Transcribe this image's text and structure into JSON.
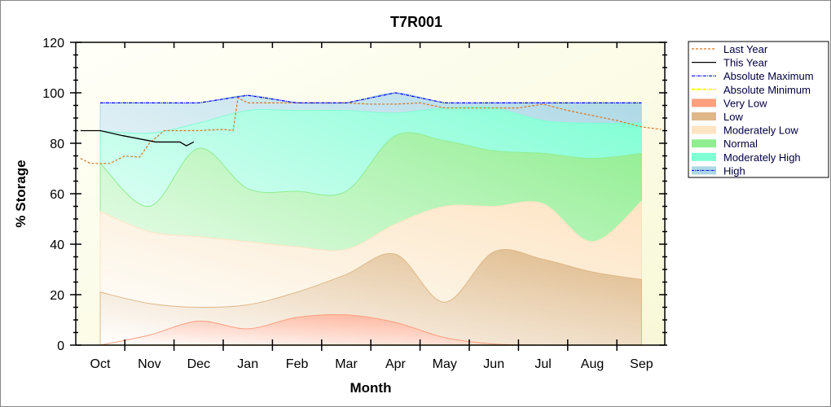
{
  "chart_data": {
    "type": "area",
    "title": "T7R001",
    "xlabel": "Month",
    "ylabel": "% Storage",
    "ylim": [
      0,
      120
    ],
    "yticks": [
      "0",
      "20",
      "40",
      "60",
      "80",
      "100",
      "120"
    ],
    "categories": [
      "Oct",
      "Nov",
      "Dec",
      "Jan",
      "Feb",
      "Mar",
      "Apr",
      "May",
      "Jun",
      "Jul",
      "Aug",
      "Sep"
    ],
    "legend_position": "right",
    "bands": [
      {
        "name": "Very Low",
        "color": "#ff9f80",
        "upper": [
          0,
          4,
          9.5,
          6.5,
          11,
          12,
          9,
          3,
          0.5,
          0,
          0,
          0
        ]
      },
      {
        "name": "Low",
        "color": "#deb887",
        "upper": [
          21,
          16.5,
          15,
          16,
          21,
          28,
          36,
          17,
          37,
          34,
          29,
          26
        ]
      },
      {
        "name": "Moderately Low",
        "color": "#ffe4c4",
        "upper": [
          53,
          45,
          43,
          41,
          39,
          38,
          48,
          55,
          55,
          56,
          41,
          57
        ]
      },
      {
        "name": "Normal",
        "color": "#90ee90",
        "upper": [
          72,
          55,
          78,
          62,
          61,
          61,
          83,
          81,
          77,
          76,
          74,
          76
        ]
      },
      {
        "name": "Moderately High",
        "color": "#7fffd4",
        "upper": [
          85,
          84,
          88,
          93,
          93,
          93,
          92,
          94,
          94,
          89,
          88,
          88
        ]
      },
      {
        "name": "High",
        "color": "#add8e6",
        "upper": [
          96,
          96,
          96,
          99,
          96,
          96,
          100,
          96,
          96,
          96,
          96,
          96
        ]
      }
    ],
    "lines": [
      {
        "name": "Last Year",
        "color": "#d2782a",
        "style": "dash",
        "x": [
          -0.4,
          -0.2,
          0.2,
          0.5,
          0.8,
          1.0,
          1.3,
          2.0,
          2.5,
          2.7,
          2.8,
          3.0,
          4.0,
          5.0,
          5.5,
          6.0,
          6.5,
          7,
          8,
          8.5,
          9,
          9.5,
          10,
          10.5,
          11,
          11.4
        ],
        "y": [
          74,
          72,
          72,
          75,
          74.5,
          80,
          85,
          85,
          85.5,
          85,
          98,
          96,
          96,
          96,
          95.5,
          95.5,
          96,
          94,
          94,
          94,
          95.5,
          93,
          91,
          89,
          86.5,
          85.5
        ]
      },
      {
        "name": "This Year",
        "color": "#000000",
        "style": "solid",
        "x": [
          -0.4,
          0,
          0.46,
          1.13,
          1.62,
          1.75,
          1.9
        ],
        "y": [
          85,
          85,
          83,
          80.5,
          80.5,
          79,
          80.5
        ]
      },
      {
        "name": "Absolute Maximum",
        "color": "#0000ff",
        "style": "dashdot",
        "x": [
          0,
          1,
          2,
          3,
          4,
          5,
          6,
          7,
          8,
          9,
          10,
          11
        ],
        "y": [
          96,
          96,
          96,
          99,
          96,
          96,
          100,
          96,
          96,
          96,
          96,
          96
        ]
      },
      {
        "name": "Absolute Minimum",
        "color": "#ffff00",
        "style": "dashdot",
        "x": [
          0,
          11
        ],
        "y": [
          0,
          0
        ]
      }
    ]
  }
}
